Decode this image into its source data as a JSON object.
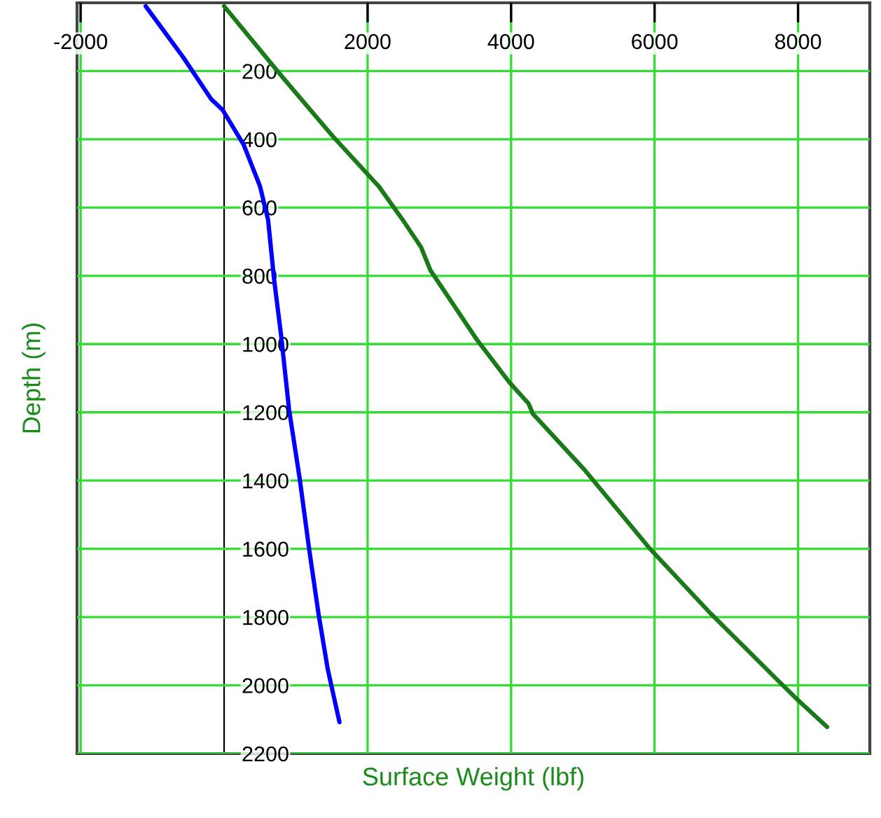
{
  "chart_data": {
    "type": "line",
    "xlabel": "Surface Weight (lbf)",
    "ylabel": "Depth (m)",
    "xlim": [
      -2050,
      9000
    ],
    "xticks": [
      -2000,
      2000,
      4000,
      6000,
      8000
    ],
    "ylim": [
      2200,
      0
    ],
    "yticks": [
      200,
      400,
      600,
      800,
      1000,
      1200,
      1400,
      1600,
      1800,
      2000,
      2200
    ],
    "grid": true,
    "marker": "none",
    "line_style": "solid",
    "series": [
      {
        "color": "#0000ff",
        "x": [
          -1093,
          -572,
          -181,
          -20,
          273,
          501,
          613,
          697,
          794,
          905,
          1054,
          1184,
          1315,
          1444,
          1608
        ],
        "values": [
          10,
          159,
          282,
          314,
          416,
          538,
          636,
          811,
          974,
          1191,
          1395,
          1599,
          1789,
          1952,
          2108
        ]
      },
      {
        "color": "#1a7a1a",
        "x": [
          0,
          794,
          1510,
          2160,
          2486,
          2745,
          2876,
          3526,
          3980,
          4242,
          4306,
          5022,
          5932,
          6779,
          7688,
          7981,
          8405
        ],
        "values": [
          10,
          213,
          390,
          539,
          635,
          716,
          784,
          988,
          1113,
          1174,
          1205,
          1368,
          1599,
          1789,
          1979,
          2040,
          2122
        ]
      }
    ]
  }
}
